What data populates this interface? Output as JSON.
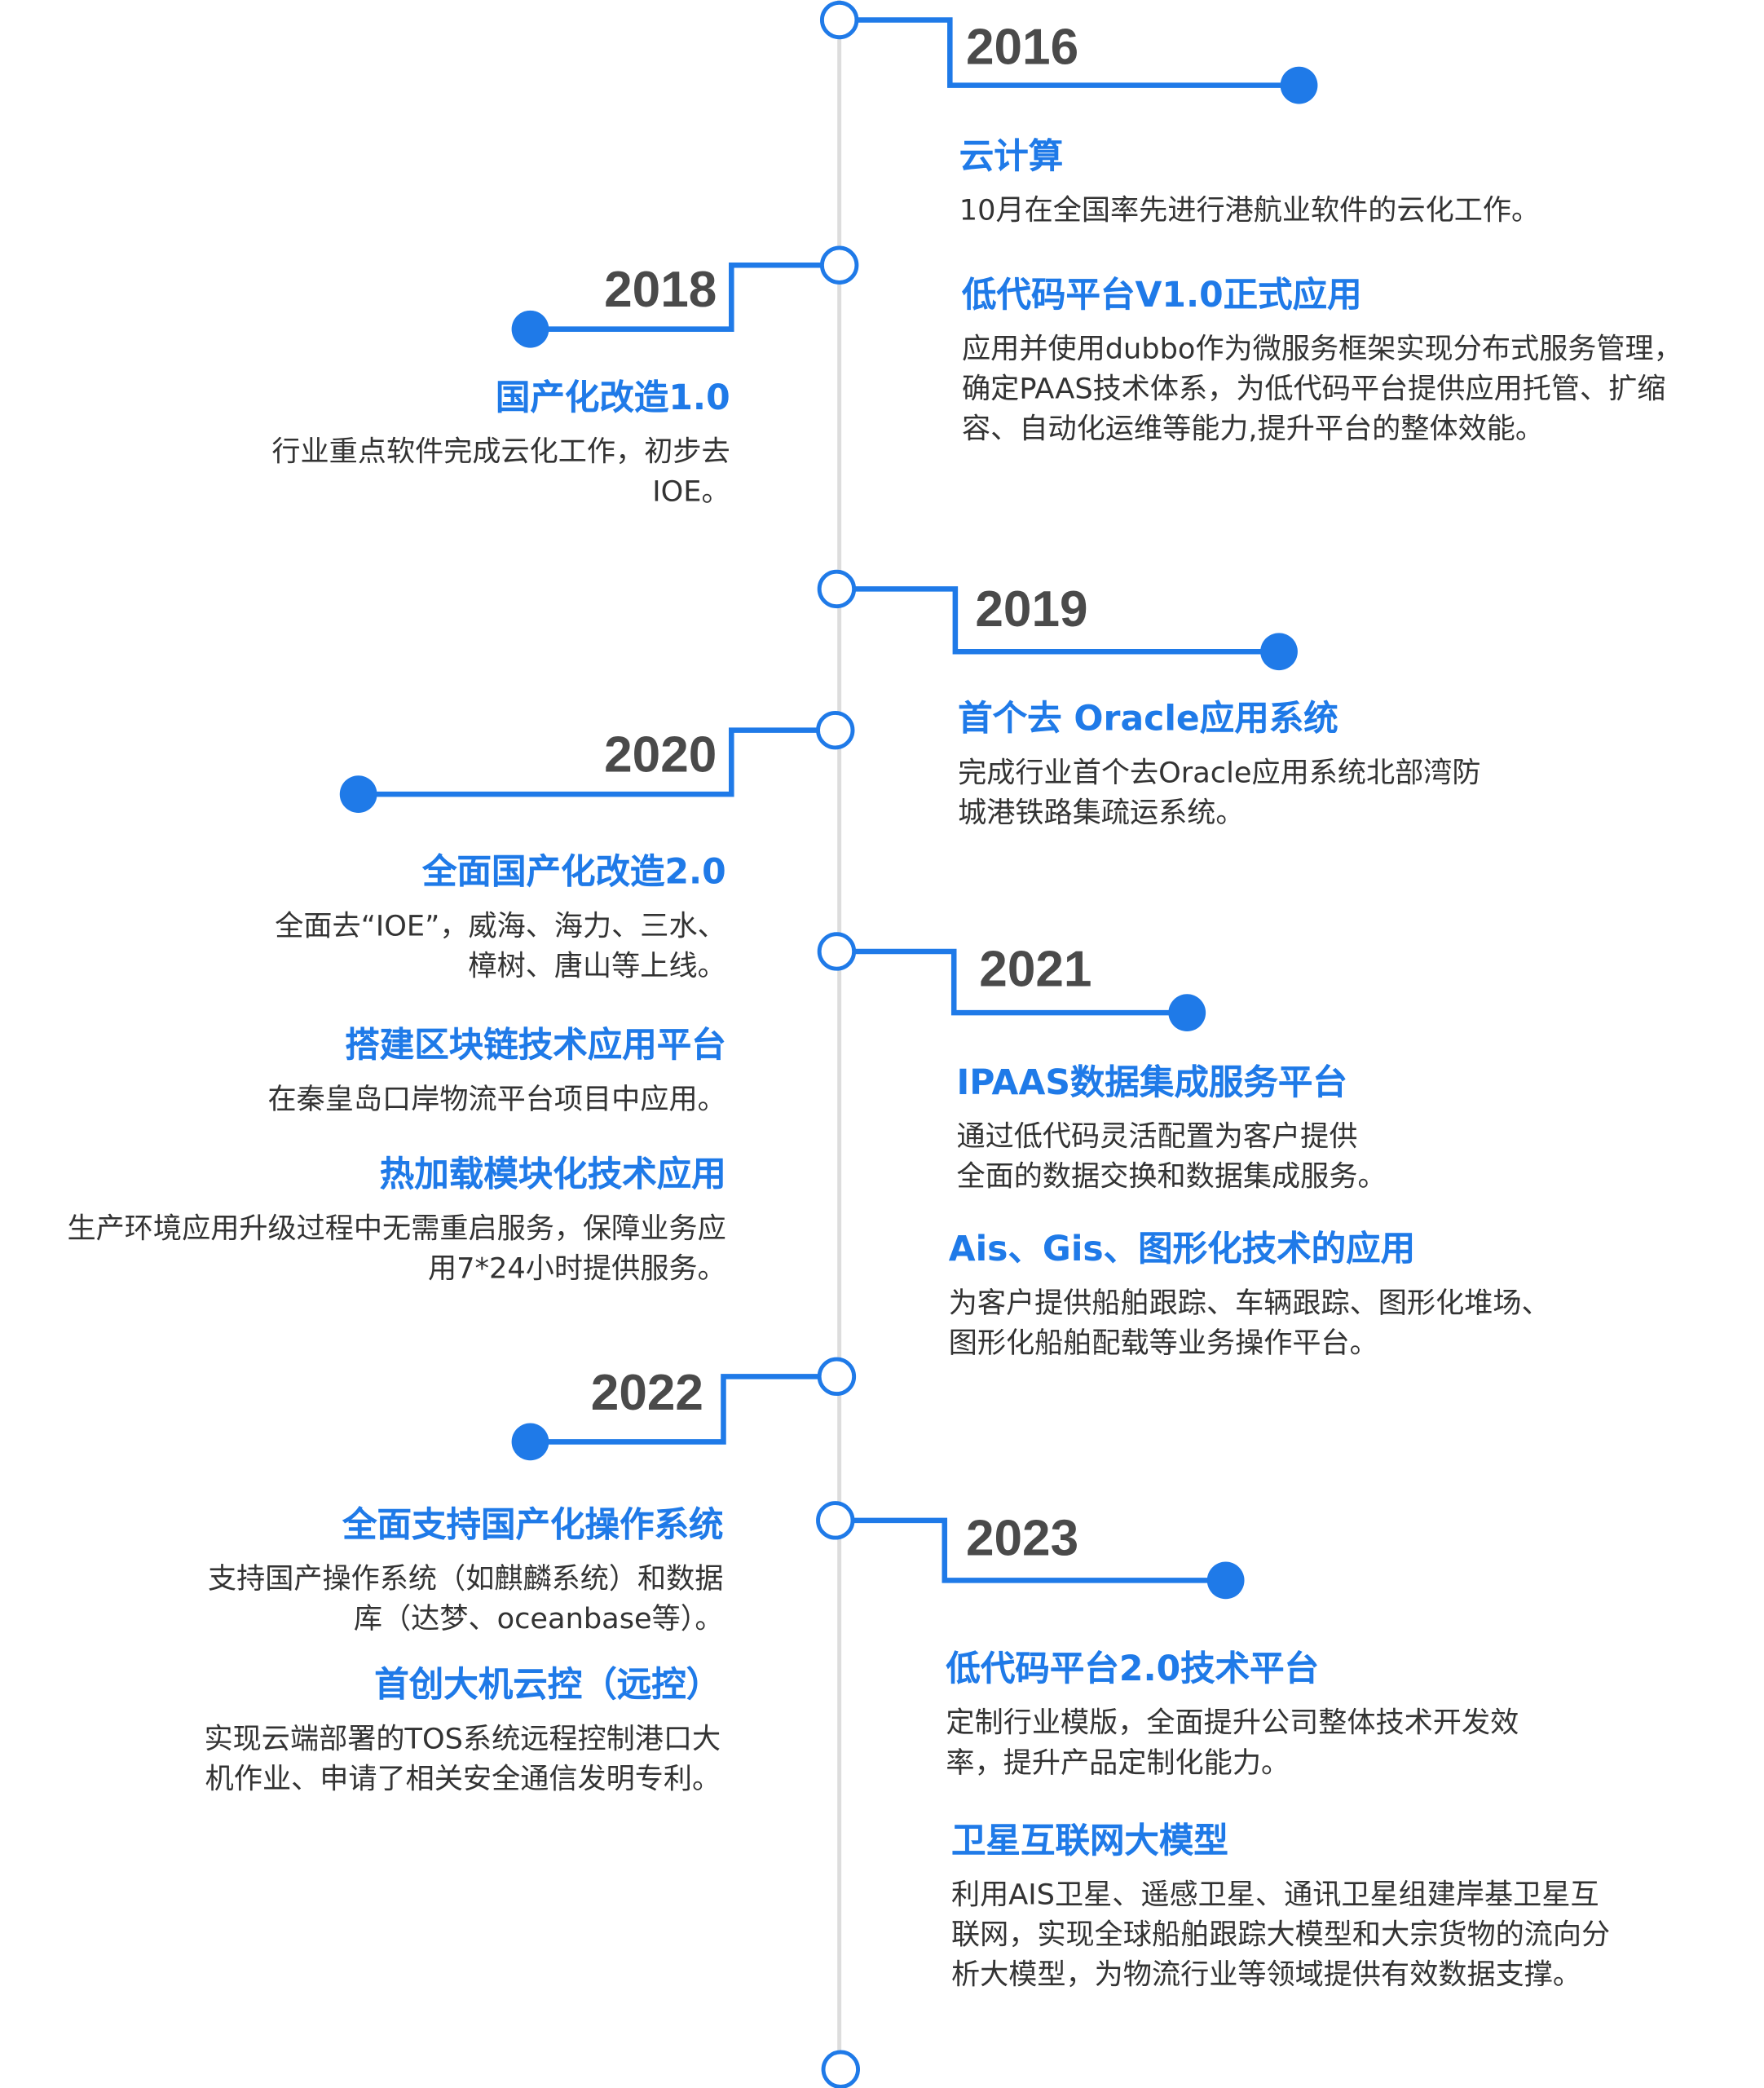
{
  "colors": {
    "accent": "#1f7ae8",
    "axis": "#dddddd",
    "year": "#4a4a4a",
    "text": "#333333"
  },
  "milestones": [
    {
      "year": "2016",
      "side": "right"
    },
    {
      "year": "2018",
      "side": "left"
    },
    {
      "year": "2019",
      "side": "right"
    },
    {
      "year": "2020",
      "side": "left"
    },
    {
      "year": "2021",
      "side": "right"
    },
    {
      "year": "2022",
      "side": "left"
    },
    {
      "year": "2023",
      "side": "right"
    }
  ],
  "items": [
    {
      "title": "云计算",
      "lines": [
        "10月在全国率先进行港航业软件的云化工作。"
      ]
    },
    {
      "title": "低代码平台V1.0正式应用",
      "lines": [
        "应用并使用dubbo作为微服务框架实现分布式服务管理，",
        "确定PAAS技术体系，为低代码平台提供应用托管、扩缩",
        "容、自动化运维等能力,提升平台的整体效能。"
      ]
    },
    {
      "title": "国产化改造1.0",
      "lines": [
        "行业重点软件完成云化工作，初步去",
        "IOE。"
      ]
    },
    {
      "title": "首个去 Oracle应用系统",
      "lines": [
        "完成行业首个去Oracle应用系统北部湾防",
        "城港铁路集疏运系统。"
      ]
    },
    {
      "title": "全面国产化改造2.0",
      "lines": [
        "全面去“IOE”，威海、海力、三水、",
        "樟树、唐山等上线。"
      ]
    },
    {
      "title": "搭建区块链技术应用平台",
      "lines": [
        "在秦皇岛口岸物流平台项目中应用。"
      ]
    },
    {
      "title": "热加载模块化技术应用",
      "lines": [
        "生产环境应用升级过程中无需重启服务，保障业务应",
        "用7*24小时提供服务。"
      ]
    },
    {
      "title": "IPAAS数据集成服务平台",
      "lines": [
        "通过低代码灵活配置为客户提供",
        "全面的数据交换和数据集成服务。"
      ]
    },
    {
      "title": "Ais、Gis、图形化技术的应用",
      "lines": [
        "为客户提供船舶跟踪、车辆跟踪、图形化堆场、",
        "图形化船舶配载等业务操作平台。"
      ]
    },
    {
      "title": "全面支持国产化操作系统",
      "lines": [
        "支持国产操作系统（如麒麟系统）和数据",
        "库（达梦、oceanbase等）。"
      ]
    },
    {
      "title": "首创大机云控（远控）",
      "lines": [
        "实现云端部署的TOS系统远程控制港口大",
        "机作业、申请了相关安全通信发明专利。"
      ]
    },
    {
      "title": "低代码平台2.0技术平台",
      "lines": [
        "定制行业模版，全面提升公司整体技术开发效",
        "率，提升产品定制化能力。"
      ]
    },
    {
      "title": "卫星互联网大模型",
      "lines": [
        "利用AIS卫星、遥感卫星、通讯卫星组建岸基卫星互",
        "联网，实现全球船舶跟踪大模型和大宗货物的流向分",
        "析大模型，为物流行业等领域提供有效数据支撑。"
      ]
    }
  ]
}
